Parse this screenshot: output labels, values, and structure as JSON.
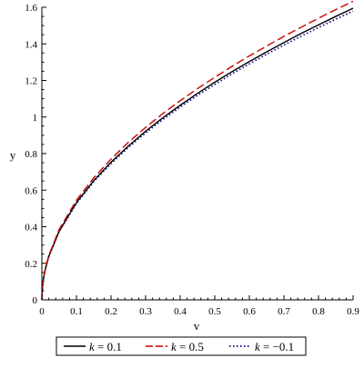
{
  "chart_data": {
    "type": "line",
    "title": "",
    "xlabel": "v",
    "ylabel": "y",
    "xlim": [
      0,
      0.9
    ],
    "ylim": [
      0,
      1.6
    ],
    "grid": false,
    "legend_placement": "bottom",
    "x_ticks": [
      "0",
      "0.1",
      "0.2",
      "0.3",
      "0.4",
      "0.5",
      "0.6",
      "0.7",
      "0.8",
      "0.9"
    ],
    "y_ticks": [
      "0",
      "0.2",
      "0.4",
      "0.6",
      "0.8",
      "1",
      "1.2",
      "1.4",
      "1.6"
    ],
    "x": [
      0,
      0.001,
      0.005,
      0.01,
      0.02,
      0.05,
      0.1,
      0.15,
      0.2,
      0.25,
      0.3,
      0.35,
      0.4,
      0.45,
      0.5,
      0.55,
      0.6,
      0.65,
      0.7,
      0.75,
      0.8,
      0.85,
      0.9
    ],
    "series": [
      {
        "name": "k = 0.1",
        "legend_var": "k",
        "legend_value": "= 0.1",
        "color": "#000000",
        "style": "solid",
        "values": [
          0,
          0.053,
          0.119,
          0.168,
          0.238,
          0.376,
          0.532,
          0.652,
          0.753,
          0.841,
          0.922,
          0.996,
          1.064,
          1.129,
          1.19,
          1.248,
          1.303,
          1.356,
          1.407,
          1.457,
          1.504,
          1.55,
          1.595
        ]
      },
      {
        "name": "k = 0.5",
        "legend_var": "k",
        "legend_value": "= 0.5",
        "color": "#cc0000",
        "style": "dashed",
        "values": [
          0,
          0.054,
          0.122,
          0.172,
          0.243,
          0.385,
          0.545,
          0.667,
          0.77,
          0.861,
          0.943,
          1.019,
          1.089,
          1.155,
          1.217,
          1.277,
          1.334,
          1.388,
          1.441,
          1.491,
          1.54,
          1.587,
          1.633
        ]
      },
      {
        "name": "k = −0.1",
        "legend_var": "k",
        "legend_value": "= −0.1",
        "color": "#00008b",
        "style": "dotted",
        "values": [
          0,
          0.053,
          0.118,
          0.167,
          0.236,
          0.373,
          0.527,
          0.646,
          0.745,
          0.833,
          0.913,
          0.986,
          1.054,
          1.118,
          1.178,
          1.236,
          1.29,
          1.343,
          1.393,
          1.442,
          1.489,
          1.535,
          1.579
        ]
      }
    ]
  }
}
